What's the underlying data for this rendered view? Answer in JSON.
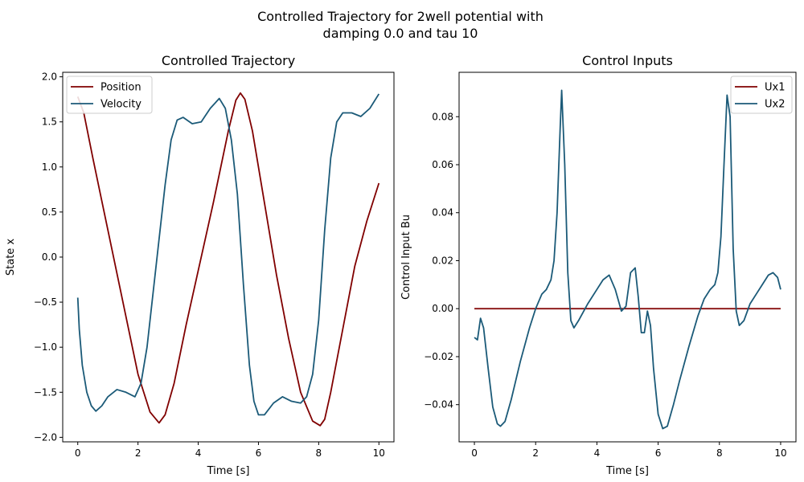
{
  "suptitle": {
    "line1": "Controlled Trajectory for 2well potential with",
    "line2": "damping 0.0 and tau 10"
  },
  "chart_data": [
    {
      "type": "line",
      "title": "Controlled Trajectory",
      "xlabel": "Time [s]",
      "ylabel": "State x",
      "xlim": [
        -0.5,
        10.5
      ],
      "ylim": [
        -2.05,
        2.05
      ],
      "xticks": [
        0,
        2,
        4,
        6,
        8,
        10
      ],
      "xtick_labels": [
        "0",
        "2",
        "4",
        "6",
        "8",
        "10"
      ],
      "yticks": [
        -2.0,
        -1.5,
        -1.0,
        -0.5,
        0.0,
        0.5,
        1.0,
        1.5,
        2.0
      ],
      "ytick_labels": [
        "−2.0",
        "−1.5",
        "−1.0",
        "−0.5",
        "0.0",
        "0.5",
        "1.0",
        "1.5",
        "2.0"
      ],
      "grid": false,
      "legend": "top-left",
      "series": [
        {
          "name": "Position",
          "color": "#800000",
          "x": [
            0,
            0.2,
            0.5,
            1.0,
            1.5,
            2.0,
            2.4,
            2.7,
            2.9,
            3.2,
            3.6,
            4.0,
            4.5,
            5.0,
            5.25,
            5.4,
            5.55,
            5.8,
            6.2,
            6.6,
            7.0,
            7.4,
            7.8,
            8.05,
            8.2,
            8.4,
            8.8,
            9.2,
            9.6,
            10.0
          ],
          "y": [
            1.78,
            1.6,
            1.1,
            0.3,
            -0.5,
            -1.3,
            -1.72,
            -1.84,
            -1.75,
            -1.4,
            -0.75,
            -0.15,
            0.6,
            1.4,
            1.74,
            1.82,
            1.75,
            1.4,
            0.6,
            -0.2,
            -0.9,
            -1.5,
            -1.82,
            -1.87,
            -1.8,
            -1.5,
            -0.8,
            -0.1,
            0.4,
            0.82
          ]
        },
        {
          "name": "Velocity",
          "color": "#1b5a78",
          "x": [
            0,
            0.05,
            0.15,
            0.3,
            0.45,
            0.6,
            0.8,
            1.0,
            1.3,
            1.6,
            1.9,
            2.1,
            2.3,
            2.6,
            2.9,
            3.1,
            3.3,
            3.5,
            3.8,
            4.1,
            4.4,
            4.7,
            4.9,
            5.1,
            5.3,
            5.5,
            5.7,
            5.85,
            6.0,
            6.2,
            6.5,
            6.8,
            7.1,
            7.4,
            7.6,
            7.8,
            8.0,
            8.2,
            8.4,
            8.6,
            8.8,
            9.1,
            9.4,
            9.7,
            10.0
          ],
          "y": [
            -0.45,
            -0.8,
            -1.2,
            -1.5,
            -1.65,
            -1.71,
            -1.65,
            -1.55,
            -1.47,
            -1.5,
            -1.55,
            -1.4,
            -1.0,
            -0.1,
            0.8,
            1.3,
            1.52,
            1.55,
            1.48,
            1.5,
            1.65,
            1.76,
            1.65,
            1.3,
            0.7,
            -0.3,
            -1.2,
            -1.6,
            -1.75,
            -1.75,
            -1.62,
            -1.55,
            -1.6,
            -1.62,
            -1.55,
            -1.3,
            -0.7,
            0.3,
            1.1,
            1.5,
            1.6,
            1.6,
            1.56,
            1.65,
            1.81
          ]
        }
      ]
    },
    {
      "type": "line",
      "title": "Control Inputs",
      "xlabel": "Time [s]",
      "ylabel": "Control Input Bu",
      "xlim": [
        -0.5,
        10.5
      ],
      "ylim": [
        -0.0555,
        0.0985
      ],
      "xticks": [
        0,
        2,
        4,
        6,
        8,
        10
      ],
      "xtick_labels": [
        "0",
        "2",
        "4",
        "6",
        "8",
        "10"
      ],
      "yticks": [
        -0.04,
        -0.02,
        0.0,
        0.02,
        0.04,
        0.06,
        0.08
      ],
      "ytick_labels": [
        "−0.04",
        "−0.02",
        "0.00",
        "0.02",
        "0.04",
        "0.06",
        "0.08"
      ],
      "grid": false,
      "legend": "top-right",
      "series": [
        {
          "name": "Ux1",
          "color": "#800000",
          "x": [
            0,
            10
          ],
          "y": [
            0,
            0
          ]
        },
        {
          "name": "Ux2",
          "color": "#1b5a78",
          "x": [
            0,
            0.1,
            0.2,
            0.3,
            0.45,
            0.6,
            0.75,
            0.85,
            1.0,
            1.2,
            1.5,
            1.8,
            2.0,
            2.2,
            2.35,
            2.5,
            2.6,
            2.7,
            2.8,
            2.85,
            2.95,
            3.05,
            3.15,
            3.25,
            3.4,
            3.7,
            4.0,
            4.2,
            4.4,
            4.6,
            4.8,
            4.95,
            5.1,
            5.25,
            5.35,
            5.45,
            5.55,
            5.65,
            5.75,
            5.85,
            6.0,
            6.15,
            6.3,
            6.5,
            6.7,
            7.0,
            7.3,
            7.5,
            7.7,
            7.85,
            7.95,
            8.05,
            8.15,
            8.25,
            8.35,
            8.45,
            8.55,
            8.65,
            8.8,
            9.0,
            9.2,
            9.4,
            9.6,
            9.75,
            9.9,
            10.0
          ],
          "y": [
            -0.012,
            -0.013,
            -0.004,
            -0.008,
            -0.025,
            -0.041,
            -0.048,
            -0.049,
            -0.047,
            -0.038,
            -0.022,
            -0.008,
            0.0,
            0.006,
            0.008,
            0.012,
            0.02,
            0.04,
            0.075,
            0.091,
            0.06,
            0.015,
            -0.005,
            -0.008,
            -0.005,
            0.002,
            0.008,
            0.012,
            0.014,
            0.008,
            -0.001,
            0.001,
            0.015,
            0.017,
            0.005,
            -0.01,
            -0.01,
            -0.001,
            -0.007,
            -0.025,
            -0.044,
            -0.05,
            -0.049,
            -0.04,
            -0.03,
            -0.016,
            -0.003,
            0.004,
            0.008,
            0.01,
            0.015,
            0.03,
            0.06,
            0.089,
            0.08,
            0.025,
            -0.001,
            -0.007,
            -0.005,
            0.002,
            0.006,
            0.01,
            0.014,
            0.015,
            0.013,
            0.008
          ]
        }
      ]
    }
  ]
}
